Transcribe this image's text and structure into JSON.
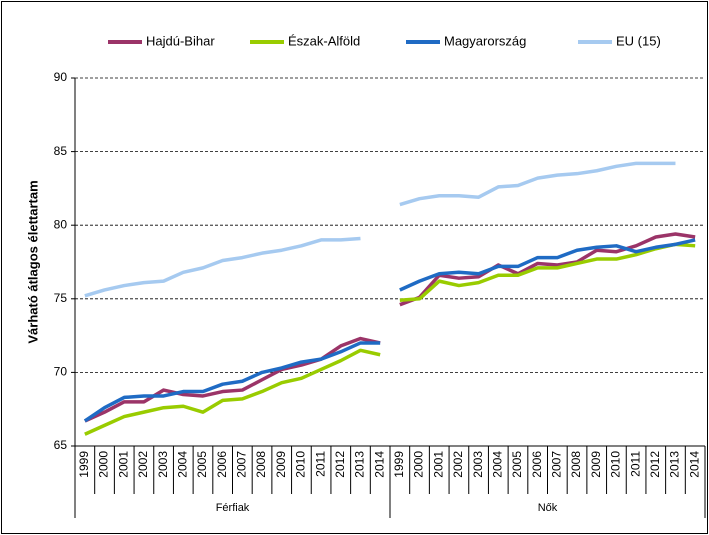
{
  "chart_data": {
    "type": "line",
    "y_label": "Várható átlagos élettartam",
    "category_groups": [
      "Férfiak",
      "Nők"
    ],
    "categories": [
      "1999",
      "2000",
      "2001",
      "2002",
      "2003",
      "2004",
      "2005",
      "2006",
      "2007",
      "2008",
      "2009",
      "2010",
      "2011",
      "2012",
      "2013",
      "2014",
      "1999",
      "2000",
      "2001",
      "2002",
      "2003",
      "2004",
      "2005",
      "2006",
      "2007",
      "2008",
      "2009",
      "2010",
      "2011",
      "2012",
      "2013",
      "2014"
    ],
    "series": [
      {
        "name": "Hajdú-Bihar",
        "color": "#9b3468",
        "values": [
          66.7,
          67.3,
          68.0,
          68.0,
          68.8,
          68.5,
          68.4,
          68.7,
          68.8,
          69.5,
          70.2,
          70.5,
          70.9,
          71.8,
          72.3,
          72.0,
          74.6,
          75.1,
          76.6,
          76.4,
          76.5,
          77.3,
          76.7,
          77.4,
          77.3,
          77.5,
          78.3,
          78.2,
          78.6,
          79.2,
          79.4,
          79.2
        ]
      },
      {
        "name": "Észak-Alföld",
        "color": "#99cc00",
        "values": [
          65.8,
          66.4,
          67.0,
          67.3,
          67.6,
          67.7,
          67.3,
          68.1,
          68.2,
          68.7,
          69.3,
          69.6,
          70.2,
          70.8,
          71.5,
          71.2,
          74.9,
          75.0,
          76.2,
          75.9,
          76.1,
          76.6,
          76.6,
          77.1,
          77.1,
          77.4,
          77.7,
          77.7,
          78.0,
          78.4,
          78.7,
          78.6
        ]
      },
      {
        "name": "Magyarország",
        "color": "#1f6bc4",
        "values": [
          66.7,
          67.6,
          68.3,
          68.4,
          68.4,
          68.7,
          68.7,
          69.2,
          69.4,
          70.0,
          70.3,
          70.7,
          70.9,
          71.4,
          72.0,
          72.0,
          75.6,
          76.2,
          76.7,
          76.8,
          76.7,
          77.2,
          77.2,
          77.8,
          77.8,
          78.3,
          78.5,
          78.6,
          78.2,
          78.5,
          78.7,
          79.0
        ]
      },
      {
        "name": "EU (15)",
        "color": "#a6caf0",
        "values": [
          75.2,
          75.6,
          75.9,
          76.1,
          76.2,
          76.8,
          77.1,
          77.6,
          77.8,
          78.1,
          78.3,
          78.6,
          79.0,
          79.0,
          79.1,
          null,
          81.4,
          81.8,
          82.0,
          82.0,
          81.9,
          82.6,
          82.7,
          83.2,
          83.4,
          83.5,
          83.7,
          84.0,
          84.2,
          84.2,
          84.2,
          null
        ]
      }
    ],
    "ylim": [
      65,
      90
    ],
    "yticks": [
      65,
      70,
      75,
      80,
      85,
      90
    ],
    "grid": true,
    "legend": "top"
  }
}
